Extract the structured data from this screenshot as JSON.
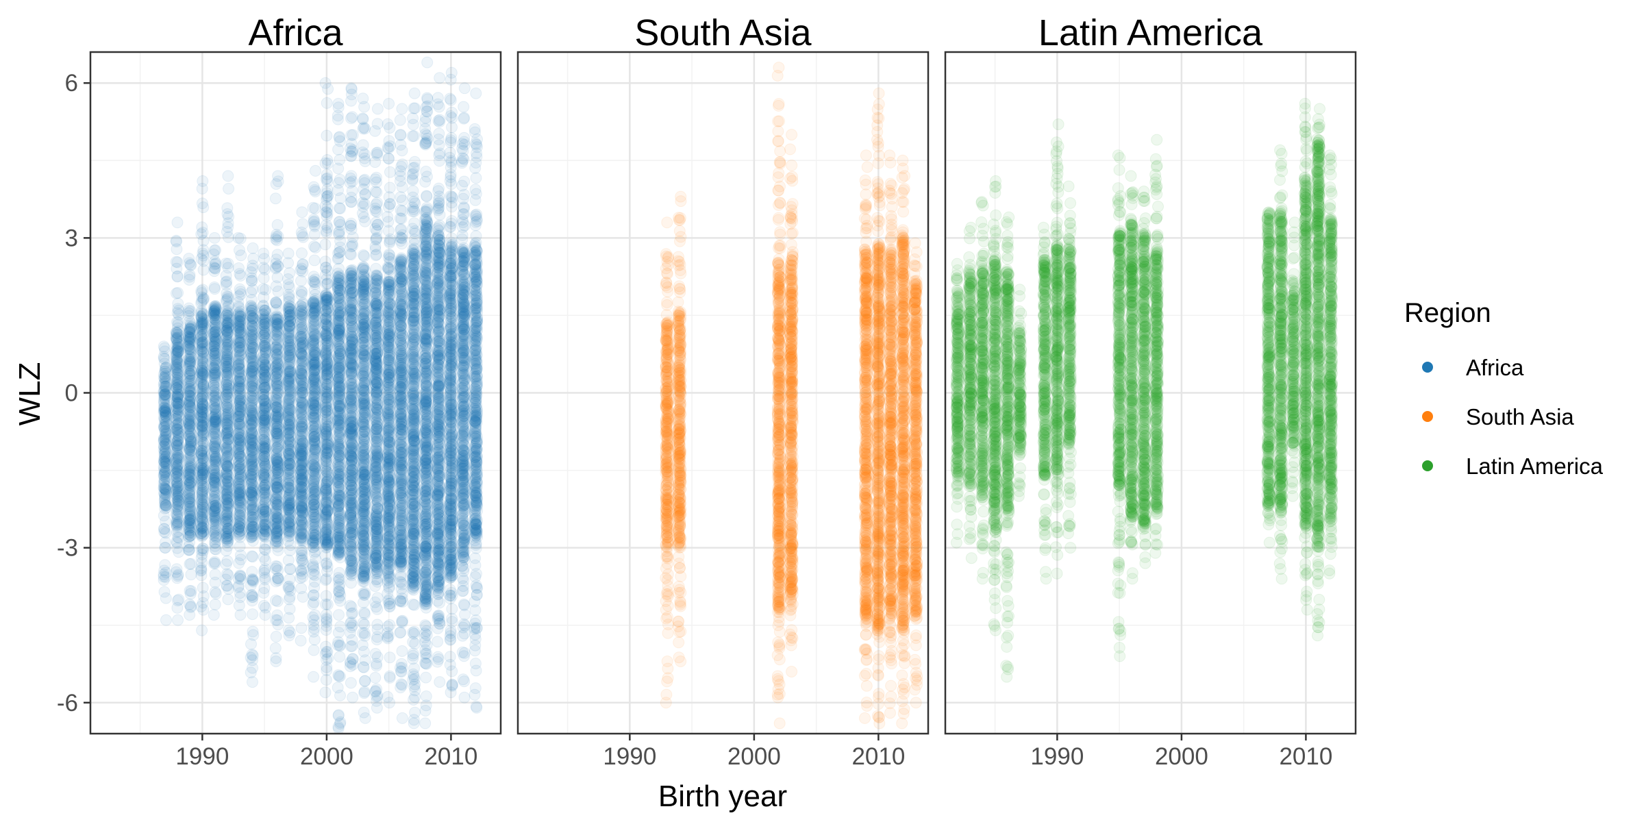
{
  "chart_data": {
    "type": "scatter",
    "xlabel": "Birth year",
    "ylabel": "WLZ",
    "xlim": [
      1981,
      2014
    ],
    "ylim": [
      -6.6,
      6.6
    ],
    "x_ticks": [
      1990,
      2000,
      2010
    ],
    "x_tick_labels": [
      "1990",
      "2000",
      "2010"
    ],
    "y_ticks": [
      6,
      3,
      0,
      -3,
      -6
    ],
    "y_tick_labels": [
      "6",
      "3",
      "0",
      "-3",
      "-6"
    ],
    "grid": true,
    "point_alpha": 0.08,
    "legend": {
      "title": "Region",
      "placement": "right",
      "entries": [
        "Africa",
        "South Asia",
        "Latin America"
      ]
    },
    "panels": [
      {
        "title": "Africa",
        "color": "#1F78B4",
        "series_by_year": [
          {
            "x": 1987,
            "core": [
              -2.2,
              0.5
            ],
            "range": [
              -4.4,
              0.9
            ]
          },
          {
            "x": 1988,
            "core": [
              -2.6,
              1.2
            ],
            "range": [
              -4.4,
              3.3
            ]
          },
          {
            "x": 1989,
            "core": [
              -2.8,
              1.4
            ],
            "range": [
              -4.3,
              2.6
            ]
          },
          {
            "x": 1990,
            "core": [
              -2.8,
              1.6
            ],
            "range": [
              -4.6,
              4.1
            ]
          },
          {
            "x": 1991,
            "core": [
              -2.8,
              1.7
            ],
            "range": [
              -4.3,
              3.0
            ]
          },
          {
            "x": 1992,
            "core": [
              -2.9,
              1.6
            ],
            "range": [
              -4.0,
              4.2
            ]
          },
          {
            "x": 1993,
            "core": [
              -2.8,
              1.6
            ],
            "range": [
              -4.3,
              3.0
            ]
          },
          {
            "x": 1994,
            "core": [
              -2.8,
              1.7
            ],
            "range": [
              -5.6,
              2.8
            ]
          },
          {
            "x": 1995,
            "core": [
              -2.8,
              1.6
            ],
            "range": [
              -4.3,
              2.7
            ]
          },
          {
            "x": 1996,
            "core": [
              -2.9,
              1.5
            ],
            "range": [
              -5.2,
              4.2
            ]
          },
          {
            "x": 1997,
            "core": [
              -2.8,
              1.7
            ],
            "range": [
              -4.7,
              2.7
            ]
          },
          {
            "x": 1998,
            "core": [
              -2.9,
              1.7
            ],
            "range": [
              -4.8,
              3.5
            ]
          },
          {
            "x": 1999,
            "core": [
              -3.0,
              1.8
            ],
            "range": [
              -5.5,
              4.3
            ]
          },
          {
            "x": 2000,
            "core": [
              -3.0,
              1.9
            ],
            "range": [
              -5.8,
              6.0
            ]
          },
          {
            "x": 2001,
            "core": [
              -3.2,
              2.3
            ],
            "range": [
              -6.5,
              5.6
            ]
          },
          {
            "x": 2002,
            "core": [
              -3.5,
              2.4
            ],
            "range": [
              -5.9,
              5.9
            ]
          },
          {
            "x": 2003,
            "core": [
              -3.6,
              2.3
            ],
            "range": [
              -6.3,
              5.7
            ]
          },
          {
            "x": 2004,
            "core": [
              -3.5,
              2.3
            ],
            "range": [
              -6.1,
              5.5
            ]
          },
          {
            "x": 2005,
            "core": [
              -3.6,
              2.2
            ],
            "range": [
              -6.0,
              5.6
            ]
          },
          {
            "x": 2006,
            "core": [
              -3.4,
              2.6
            ],
            "range": [
              -6.3,
              5.5
            ]
          },
          {
            "x": 2007,
            "core": [
              -3.8,
              2.8
            ],
            "range": [
              -6.4,
              5.8
            ]
          },
          {
            "x": 2008,
            "core": [
              -4.1,
              3.4
            ],
            "range": [
              -6.4,
              6.4
            ]
          },
          {
            "x": 2009,
            "core": [
              -3.9,
              3.1
            ],
            "range": [
              -5.6,
              6.1
            ]
          },
          {
            "x": 2010,
            "core": [
              -3.6,
              2.9
            ],
            "range": [
              -5.8,
              6.2
            ]
          },
          {
            "x": 2011,
            "core": [
              -3.2,
              2.8
            ],
            "range": [
              -5.9,
              5.9
            ]
          },
          {
            "x": 2012,
            "core": [
              -2.8,
              2.8
            ],
            "range": [
              -6.1,
              5.8
            ]
          }
        ]
      },
      {
        "title": "South Asia",
        "color": "#FF7F0E",
        "series_by_year": [
          {
            "x": 1993,
            "core": [
              -3.0,
              1.4
            ],
            "range": [
              -6.0,
              3.3
            ]
          },
          {
            "x": 1994,
            "core": [
              -3.0,
              1.6
            ],
            "range": [
              -5.2,
              3.8
            ]
          },
          {
            "x": 2002,
            "core": [
              -4.2,
              2.4
            ],
            "range": [
              -6.4,
              6.3
            ]
          },
          {
            "x": 2003,
            "core": [
              -4.0,
              2.6
            ],
            "range": [
              -5.4,
              5.0
            ]
          },
          {
            "x": 2009,
            "core": [
              -4.4,
              2.8
            ],
            "range": [
              -6.3,
              4.6
            ]
          },
          {
            "x": 2010,
            "core": [
              -4.6,
              2.9
            ],
            "range": [
              -6.4,
              5.8
            ]
          },
          {
            "x": 2011,
            "core": [
              -4.4,
              2.8
            ],
            "range": [
              -6.2,
              4.6
            ]
          },
          {
            "x": 2012,
            "core": [
              -4.6,
              3.0
            ],
            "range": [
              -6.4,
              4.5
            ]
          },
          {
            "x": 2013,
            "core": [
              -4.3,
              2.2
            ],
            "range": [
              -6.0,
              2.9
            ]
          }
        ]
      },
      {
        "title": "Latin America",
        "color": "#2CA02C",
        "series_by_year": [
          {
            "x": 1982,
            "core": [
              -1.6,
              2.0
            ],
            "range": [
              -2.9,
              2.5
            ]
          },
          {
            "x": 1983,
            "core": [
              -1.8,
              2.3
            ],
            "range": [
              -3.2,
              3.2
            ]
          },
          {
            "x": 1984,
            "core": [
              -2.0,
              2.4
            ],
            "range": [
              -3.6,
              3.7
            ]
          },
          {
            "x": 1985,
            "core": [
              -2.7,
              2.6
            ],
            "range": [
              -4.6,
              4.1
            ]
          },
          {
            "x": 1986,
            "core": [
              -2.3,
              2.4
            ],
            "range": [
              -5.5,
              3.4
            ]
          },
          {
            "x": 1987,
            "core": [
              -1.2,
              1.2
            ],
            "range": [
              -2.0,
              2.0
            ]
          },
          {
            "x": 1989,
            "core": [
              -1.6,
              2.6
            ],
            "range": [
              -3.6,
              3.2
            ]
          },
          {
            "x": 1990,
            "core": [
              -1.5,
              2.9
            ],
            "range": [
              -3.5,
              5.2
            ]
          },
          {
            "x": 1991,
            "core": [
              -1.0,
              2.8
            ],
            "range": [
              -3.0,
              4.0
            ]
          },
          {
            "x": 1995,
            "core": [
              -1.8,
              3.1
            ],
            "range": [
              -5.1,
              4.6
            ]
          },
          {
            "x": 1996,
            "core": [
              -2.4,
              3.3
            ],
            "range": [
              -3.6,
              4.2
            ]
          },
          {
            "x": 1997,
            "core": [
              -2.6,
              3.1
            ],
            "range": [
              -3.3,
              3.9
            ]
          },
          {
            "x": 1998,
            "core": [
              -2.3,
              2.8
            ],
            "range": [
              -3.1,
              4.9
            ]
          },
          {
            "x": 2007,
            "core": [
              -2.2,
              3.4
            ],
            "range": [
              -2.9,
              3.5
            ]
          },
          {
            "x": 2008,
            "core": [
              -2.3,
              3.5
            ],
            "range": [
              -3.6,
              4.7
            ]
          },
          {
            "x": 2009,
            "core": [
              -1.0,
              2.0
            ],
            "range": [
              -2.0,
              3.3
            ]
          },
          {
            "x": 2010,
            "core": [
              -2.6,
              4.2
            ],
            "range": [
              -4.2,
              5.6
            ]
          },
          {
            "x": 2011,
            "core": [
              -3.0,
              4.9
            ],
            "range": [
              -4.7,
              5.5
            ]
          },
          {
            "x": 2012,
            "core": [
              -2.5,
              3.4
            ],
            "range": [
              -3.5,
              4.6
            ]
          }
        ]
      }
    ]
  }
}
